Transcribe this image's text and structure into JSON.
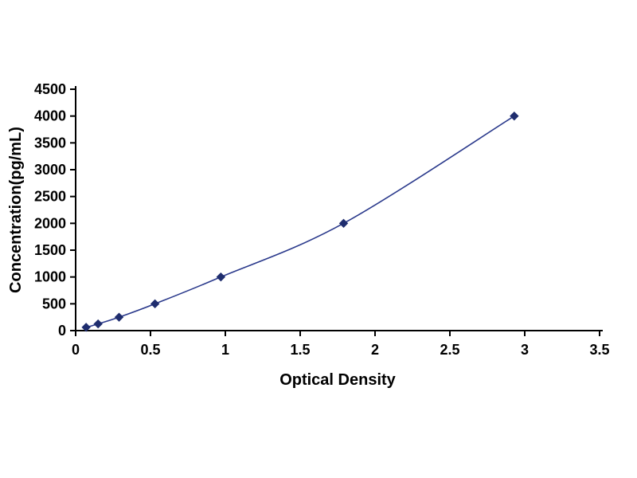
{
  "chart_data": {
    "type": "line",
    "title": "",
    "xlabel": "Optical Density",
    "ylabel": "Concentration(pg/mL)",
    "xlim": [
      0,
      3.5
    ],
    "ylim": [
      0,
      4500
    ],
    "x_ticks": [
      0,
      0.5,
      1,
      1.5,
      2,
      2.5,
      3,
      3.5
    ],
    "x_tick_labels": [
      "0",
      "0.5",
      "1",
      "1.5",
      "2",
      "2.5",
      "3",
      "3.5"
    ],
    "y_ticks": [
      0,
      500,
      1000,
      1500,
      2000,
      2500,
      3000,
      3500,
      4000,
      4500
    ],
    "y_tick_labels": [
      "0",
      "500",
      "1000",
      "1500",
      "2000",
      "2500",
      "3000",
      "3500",
      "4000",
      "4500"
    ],
    "grid": false,
    "legend": null,
    "marker": "diamond",
    "line_color": "#2b3a8c",
    "marker_color": "#1f2d6e",
    "axis_color": "#000000",
    "points": [
      {
        "x": 0.07,
        "y": 62
      },
      {
        "x": 0.15,
        "y": 125
      },
      {
        "x": 0.29,
        "y": 250
      },
      {
        "x": 0.53,
        "y": 500
      },
      {
        "x": 0.97,
        "y": 1000
      },
      {
        "x": 1.79,
        "y": 2000
      },
      {
        "x": 2.93,
        "y": 4000
      }
    ]
  }
}
